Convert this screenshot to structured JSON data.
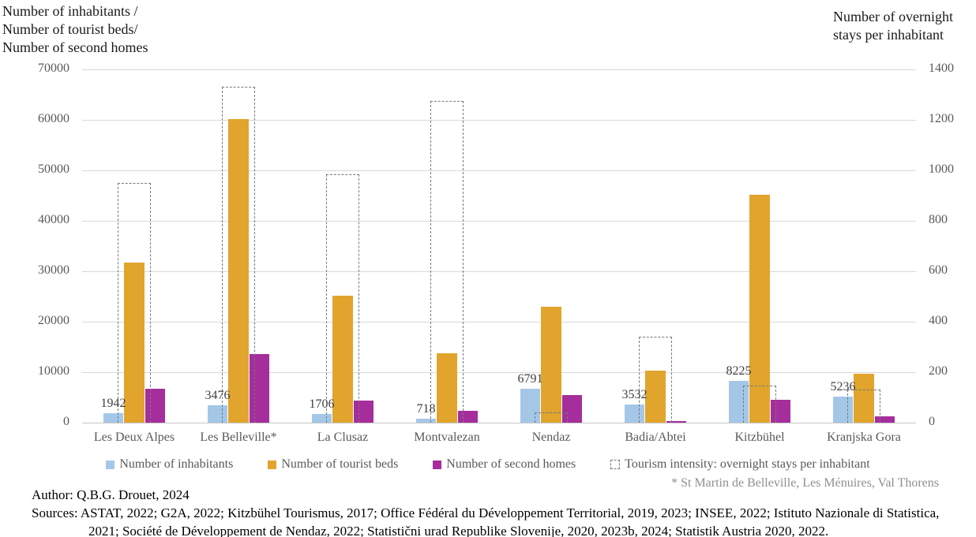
{
  "left_axis_title": "Number of inhabitants /\nNumber of tourist beds/\nNumber of second homes",
  "right_axis_title": "Number of overnight\nstays per inhabitant",
  "chart_data": {
    "type": "bar",
    "title": "",
    "categories": [
      "Les Deux Alpes",
      "Les Belleville*",
      "La Clusaz",
      "Montvalezan",
      "Nendaz",
      "Badia/Abtei",
      "Kitzbühel",
      "Kranjska Gora"
    ],
    "left_axis": {
      "label": "Number of inhabitants / Number of tourist beds/ Number of second homes",
      "min": 0,
      "max": 70000,
      "step": 10000,
      "ticks": [
        "70000",
        "60000",
        "50000",
        "40000",
        "30000",
        "20000",
        "10000",
        "0"
      ]
    },
    "right_axis": {
      "label": "Number of overnight stays per inhabitant",
      "min": 0,
      "max": 1400,
      "step": 200,
      "ticks": [
        "1400",
        "1200",
        "1000",
        "800",
        "600",
        "400",
        "200",
        "0"
      ]
    },
    "grid": true,
    "legend_position": "bottom",
    "series": [
      {
        "name": "Number of inhabitants",
        "axis": "left",
        "style": "solid",
        "color": "#A4C7E8",
        "values": [
          1942,
          3476,
          1706,
          718,
          6791,
          3532,
          8225,
          5236
        ]
      },
      {
        "name": "Number of tourist beds",
        "axis": "left",
        "style": "solid",
        "color": "#E1A42C",
        "values": [
          31800,
          60200,
          25100,
          13700,
          23000,
          10300,
          45200,
          9700
        ]
      },
      {
        "name": "Number of second homes",
        "axis": "left",
        "style": "solid",
        "color": "#A62D9C",
        "values": [
          6800,
          13600,
          4400,
          2300,
          5500,
          350,
          4500,
          1200
        ]
      },
      {
        "name": "Tourism intensity: overnight stays per inhabitant",
        "axis": "right",
        "style": "dashed-outline",
        "color": "#6F7A85",
        "values": [
          950,
          1330,
          985,
          1275,
          40,
          340,
          148,
          130
        ]
      }
    ],
    "data_labels": {
      "series_index": 0,
      "labels": [
        "1942",
        "3476",
        "1706",
        "718",
        "6791",
        "3532",
        "8225",
        "5236"
      ]
    }
  },
  "colors": {
    "inhabitants": "#A4C7E8",
    "tourist_beds": "#E1A42C",
    "second_homes": "#A62D9C",
    "dashed_outline": "#6F7A85",
    "gridline": "#D9D9D9",
    "tick_text": "#595959"
  },
  "footnote": "* St Martin de Belleville, Les Ménuires, Val Thorens",
  "footer": {
    "author": "Author: Q.B.G. Drouet, 2024",
    "sources": "Sources: ASTAT, 2022; G2A, 2022; Kitzbühel Tourismus, 2017; Office Fédéral du Développement Territorial, 2019, 2023; INSEE, 2022; Istituto Nazionale di Statistica, 2021; Société de Développement de Nendaz, 2022; Statistični urad Republike Slovenije, 2020, 2023b, 2024; Statistik Austria 2020, 2022."
  }
}
